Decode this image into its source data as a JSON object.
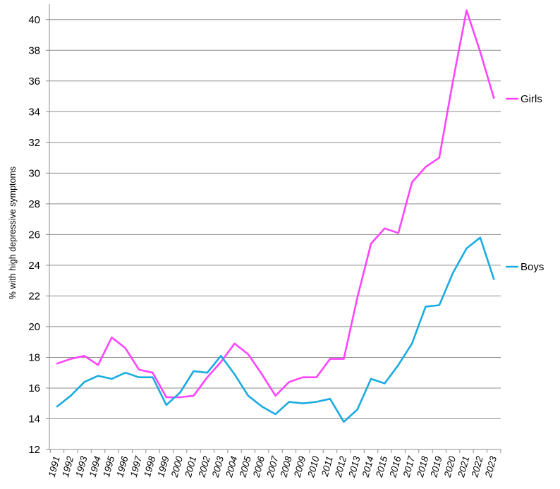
{
  "chart_data": {
    "type": "line",
    "ylabel": "% with high depressive symptoms",
    "xlabel": "",
    "ylim": [
      12,
      41
    ],
    "y_ticks": [
      12,
      14,
      16,
      18,
      20,
      22,
      24,
      26,
      28,
      30,
      32,
      34,
      36,
      38,
      40
    ],
    "grid": "horizontal",
    "legend_placement": "right, at line ends",
    "categories": [
      "1991",
      "1992",
      "1993",
      "1994",
      "1995",
      "1996",
      "1997",
      "1998",
      "1999",
      "2000",
      "2001",
      "2002",
      "2003",
      "2004",
      "2005",
      "2006",
      "2007",
      "2008",
      "2009",
      "2010",
      "2011",
      "2012",
      "2013",
      "2014",
      "2015",
      "2016",
      "2017",
      "2018",
      "2019",
      "2020",
      "2021",
      "2022",
      "2023"
    ],
    "series": [
      {
        "name": "Girls",
        "color": "#ff44ff",
        "values": [
          17.6,
          17.9,
          18.1,
          17.5,
          19.3,
          18.6,
          17.2,
          17.0,
          15.4,
          15.4,
          15.5,
          16.7,
          17.7,
          18.9,
          18.2,
          16.9,
          15.5,
          16.4,
          16.7,
          16.7,
          17.9,
          17.9,
          21.9,
          25.4,
          26.4,
          26.1,
          29.4,
          30.4,
          31.0,
          36.0,
          40.6,
          37.9,
          34.9
        ]
      },
      {
        "name": "Boys",
        "color": "#1aabe0",
        "values": [
          14.8,
          15.5,
          16.4,
          16.8,
          16.6,
          17.0,
          16.7,
          16.7,
          14.9,
          15.7,
          17.1,
          17.0,
          18.1,
          16.9,
          15.5,
          14.8,
          14.3,
          15.1,
          15.0,
          15.1,
          15.3,
          13.8,
          14.6,
          16.6,
          16.3,
          17.5,
          18.9,
          21.3,
          21.4,
          23.5,
          25.1,
          25.8,
          23.1
        ]
      }
    ]
  }
}
